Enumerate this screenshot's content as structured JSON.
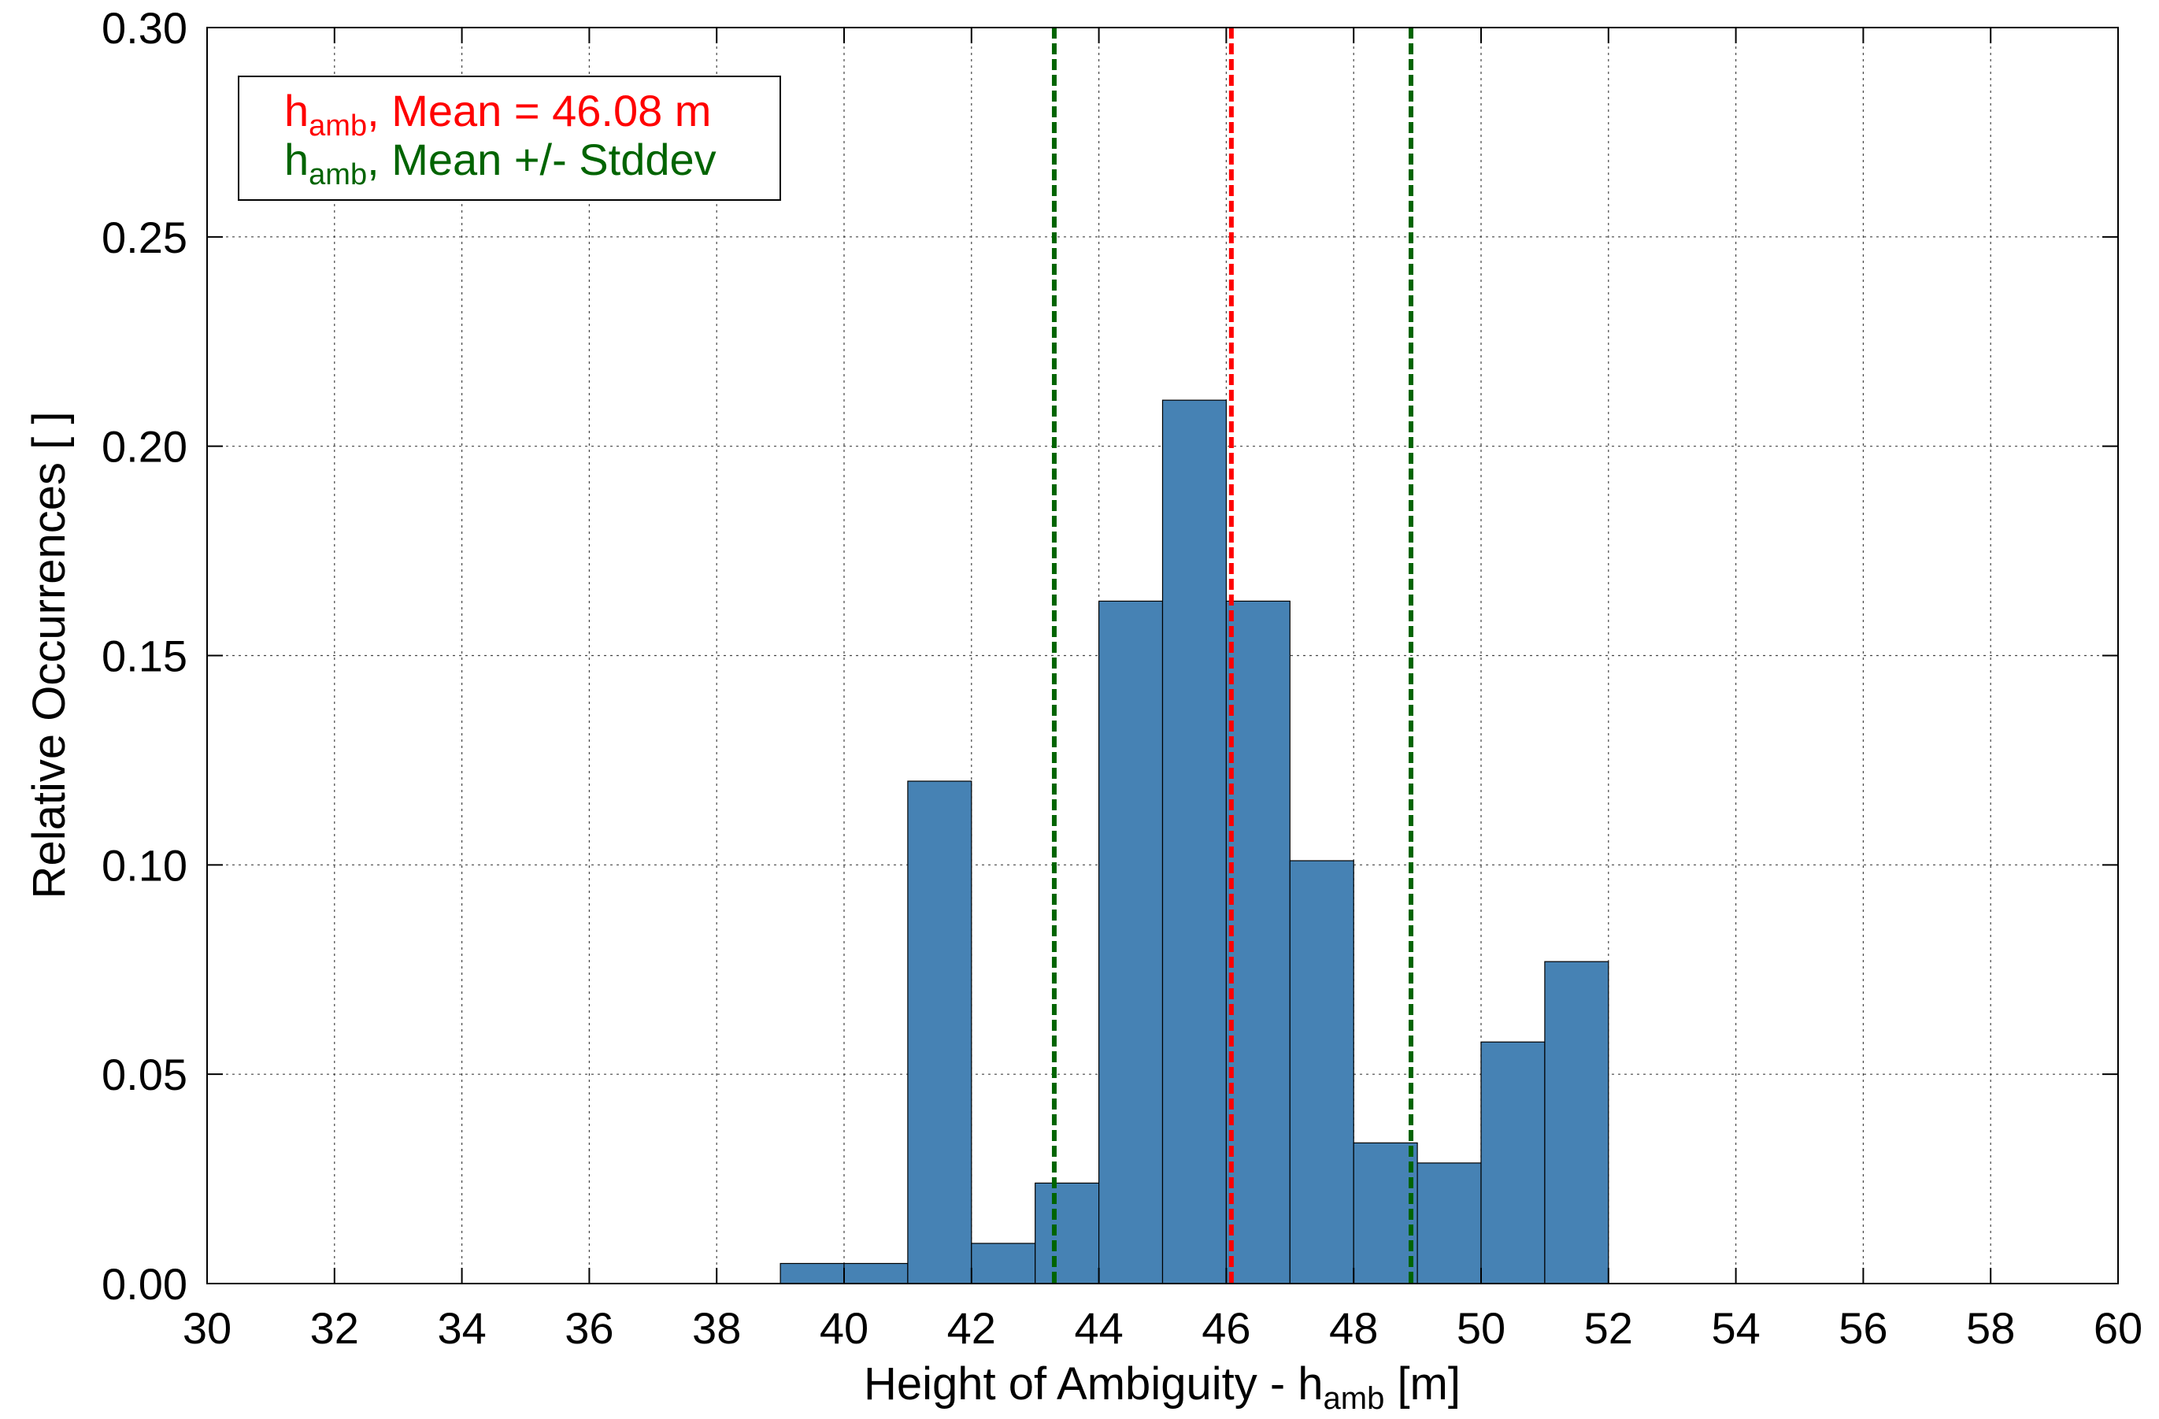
{
  "chart_data": {
    "type": "bar",
    "bins": [
      {
        "x0": 39,
        "x1": 40,
        "value": 0.0048
      },
      {
        "x0": 40,
        "x1": 41,
        "value": 0.0048
      },
      {
        "x0": 41,
        "x1": 42,
        "value": 0.12
      },
      {
        "x0": 42,
        "x1": 43,
        "value": 0.0096
      },
      {
        "x0": 43,
        "x1": 44,
        "value": 0.024
      },
      {
        "x0": 44,
        "x1": 45,
        "value": 0.163
      },
      {
        "x0": 45,
        "x1": 46,
        "value": 0.211
      },
      {
        "x0": 46,
        "x1": 47,
        "value": 0.163
      },
      {
        "x0": 47,
        "x1": 48,
        "value": 0.101
      },
      {
        "x0": 48,
        "x1": 49,
        "value": 0.0336
      },
      {
        "x0": 49,
        "x1": 50,
        "value": 0.0288
      },
      {
        "x0": 50,
        "x1": 51,
        "value": 0.0577
      },
      {
        "x0": 51,
        "x1": 52,
        "value": 0.0769
      }
    ],
    "xlim": [
      30,
      60
    ],
    "ylim": [
      0,
      0.3
    ],
    "xticks": [
      "30",
      "32",
      "34",
      "36",
      "38",
      "40",
      "42",
      "44",
      "46",
      "48",
      "50",
      "52",
      "54",
      "56",
      "58",
      "60"
    ],
    "yticks": [
      "0.00",
      "0.05",
      "0.10",
      "0.15",
      "0.20",
      "0.25",
      "0.30"
    ],
    "xlabel": {
      "main": "Height of Ambiguity - h",
      "sub": "amb",
      "unit": " [m]"
    },
    "ylabel": "Relative Occurrences [ ]",
    "grid": true,
    "bar_color": "#4682b4",
    "mean": 46.08,
    "stddev_lines": [
      43.3,
      48.9
    ],
    "mean_color": "#ff0000",
    "stddev_color": "#006400",
    "legend": {
      "position": "top-left",
      "entries": [
        {
          "h": "h",
          "sub": "amb",
          "rest": ", Mean = 46.08 m",
          "color": "#ff0000"
        },
        {
          "h": "h",
          "sub": "amb",
          "rest": ", Mean +/- Stddev",
          "color": "#006400"
        }
      ]
    }
  }
}
